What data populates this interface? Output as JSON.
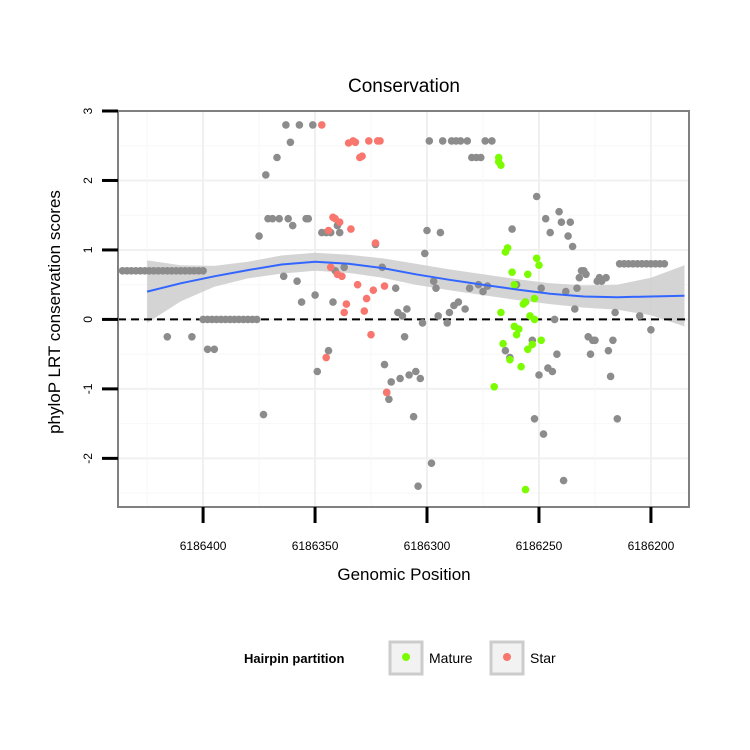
{
  "chart_data": {
    "type": "scatter",
    "title": "Conservation",
    "xlabel": "Genomic Position",
    "ylabel": "phyloP LRT conservation scores",
    "x_reversed": true,
    "xlim": [
      6186438,
      6186183
    ],
    "ylim": [
      -2.7,
      3.0
    ],
    "x_ticks": [
      6186400,
      6186350,
      6186300,
      6186250,
      6186200
    ],
    "x_tick_labels": [
      "6186400",
      "6186350",
      "6186300",
      "6186250",
      "6186200"
    ],
    "y_ticks": [
      -2,
      -1,
      0,
      1,
      2,
      3
    ],
    "y_tick_labels": [
      "-2",
      "-1",
      "0",
      "1",
      "2",
      "3"
    ],
    "reference_line": {
      "y": 0,
      "style": "dashed",
      "color": "#000000"
    },
    "grid": true,
    "legend": {
      "title": "Hairpin partition",
      "position": "bottom",
      "entries": [
        {
          "label": "Mature",
          "color": "#7cfc00"
        },
        {
          "label": "Star",
          "color": "#f8766d"
        }
      ]
    },
    "colors": {
      "other": "#8c8c8c",
      "Mature": "#7cfc00",
      "Star": "#f8766d",
      "smooth": "#3366ff",
      "band": "#cccccc"
    },
    "smooth": {
      "x": [
        6186425,
        6186410,
        6186395,
        6186380,
        6186365,
        6186350,
        6186335,
        6186320,
        6186305,
        6186290,
        6186275,
        6186260,
        6186245,
        6186230,
        6186215,
        6186200,
        6186185
      ],
      "y": [
        0.4,
        0.52,
        0.62,
        0.71,
        0.79,
        0.83,
        0.8,
        0.74,
        0.65,
        0.57,
        0.5,
        0.43,
        0.37,
        0.33,
        0.32,
        0.33,
        0.34
      ],
      "upper": [
        0.85,
        0.78,
        0.77,
        0.83,
        0.92,
        0.96,
        0.93,
        0.88,
        0.8,
        0.72,
        0.65,
        0.58,
        0.52,
        0.49,
        0.5,
        0.6,
        0.78
      ],
      "lower": [
        -0.05,
        0.26,
        0.47,
        0.59,
        0.66,
        0.7,
        0.67,
        0.6,
        0.5,
        0.42,
        0.35,
        0.28,
        0.22,
        0.17,
        0.14,
        0.06,
        -0.1
      ]
    },
    "series": [
      {
        "group": "other",
        "points": [
          [
            6186436,
            0.7
          ],
          [
            6186434,
            0.7
          ],
          [
            6186432,
            0.7
          ],
          [
            6186430,
            0.7
          ],
          [
            6186428,
            0.7
          ],
          [
            6186426,
            0.7
          ],
          [
            6186424,
            0.7
          ],
          [
            6186422,
            0.7
          ],
          [
            6186420,
            0.7
          ],
          [
            6186418,
            0.7
          ],
          [
            6186416,
            0.7
          ],
          [
            6186414,
            0.7
          ],
          [
            6186412,
            0.7
          ],
          [
            6186410,
            0.7
          ],
          [
            6186408,
            0.7
          ],
          [
            6186406,
            0.7
          ],
          [
            6186404,
            0.7
          ],
          [
            6186402,
            0.7
          ],
          [
            6186400,
            0.7
          ],
          [
            6186416,
            -0.25
          ],
          [
            6186405,
            -0.25
          ],
          [
            6186398,
            -0.43
          ],
          [
            6186395,
            -0.43
          ],
          [
            6186400,
            0
          ],
          [
            6186398,
            0
          ],
          [
            6186396,
            0
          ],
          [
            6186394,
            0
          ],
          [
            6186392,
            0
          ],
          [
            6186390,
            0
          ],
          [
            6186388,
            0
          ],
          [
            6186386,
            0
          ],
          [
            6186384,
            0
          ],
          [
            6186382,
            0
          ],
          [
            6186380,
            0
          ],
          [
            6186378,
            0
          ],
          [
            6186376,
            0
          ],
          [
            6186375,
            1.2
          ],
          [
            6186372,
            2.08
          ],
          [
            6186373,
            -1.37
          ],
          [
            6186369,
            1.45
          ],
          [
            6186367,
            2.33
          ],
          [
            6186364,
            0.62
          ],
          [
            6186363,
            2.8
          ],
          [
            6186361,
            2.55
          ],
          [
            6186360,
            1.35
          ],
          [
            6186358,
            0.55
          ],
          [
            6186357,
            2.8
          ],
          [
            6186356,
            0.25
          ],
          [
            6186354,
            1.45
          ],
          [
            6186351,
            2.8
          ],
          [
            6186350,
            0.35
          ],
          [
            6186349,
            -0.75
          ],
          [
            6186347,
            1.25
          ],
          [
            6186345,
            1.25
          ],
          [
            6186344,
            -0.45
          ],
          [
            6186343,
            1.25
          ],
          [
            6186342,
            0.25
          ],
          [
            6186341,
            0.7
          ],
          [
            6186340,
            1.35
          ],
          [
            6186371,
            1.45
          ],
          [
            6186366,
            1.45
          ],
          [
            6186362,
            1.45
          ],
          [
            6186353,
            1.45
          ],
          [
            6186339,
            1.25
          ],
          [
            6186337,
            0.75
          ],
          [
            6186323,
            1.08
          ],
          [
            6186320,
            0.75
          ],
          [
            6186319,
            -0.65
          ],
          [
            6186318,
            -1.05
          ],
          [
            6186317,
            -1.15
          ],
          [
            6186316,
            -0.9
          ],
          [
            6186314,
            0.45
          ],
          [
            6186313,
            0.1
          ],
          [
            6186312,
            -0.85
          ],
          [
            6186311,
            0.05
          ],
          [
            6186310,
            -0.25
          ],
          [
            6186309,
            0.15
          ],
          [
            6186308,
            -0.8
          ],
          [
            6186306,
            -1.4
          ],
          [
            6186305,
            -0.75
          ],
          [
            6186304,
            -2.4
          ],
          [
            6186303,
            -0.85
          ],
          [
            6186302,
            -0.05
          ],
          [
            6186301,
            0.95
          ],
          [
            6186300,
            1.28
          ],
          [
            6186299,
            2.57
          ],
          [
            6186298,
            -2.07
          ],
          [
            6186297,
            0.55
          ],
          [
            6186296,
            0.45
          ],
          [
            6186295,
            0.05
          ],
          [
            6186294,
            1.25
          ],
          [
            6186293,
            2.57
          ],
          [
            6186291,
            -0.05
          ],
          [
            6186290,
            0.1
          ],
          [
            6186289,
            2.57
          ],
          [
            6186288,
            0.2
          ],
          [
            6186287,
            2.57
          ],
          [
            6186286,
            0.25
          ],
          [
            6186285,
            2.57
          ],
          [
            6186283,
            0.15
          ],
          [
            6186282,
            2.57
          ],
          [
            6186281,
            0.45
          ],
          [
            6186280,
            2.33
          ],
          [
            6186278,
            2.33
          ],
          [
            6186277,
            0.5
          ],
          [
            6186276,
            2.33
          ],
          [
            6186275,
            0.4
          ],
          [
            6186274,
            2.57
          ],
          [
            6186273,
            0.48
          ],
          [
            6186271,
            2.57
          ],
          [
            6186265,
            -0.45
          ],
          [
            6186263,
            -0.55
          ],
          [
            6186262,
            1.3
          ],
          [
            6186260,
            0.5
          ],
          [
            6186256,
            0.25
          ],
          [
            6186253,
            -0.3
          ],
          [
            6186252,
            -1.43
          ],
          [
            6186251,
            1.77
          ],
          [
            6186250,
            -0.8
          ],
          [
            6186249,
            0.45
          ],
          [
            6186248,
            -1.65
          ],
          [
            6186247,
            1.45
          ],
          [
            6186246,
            -0.7
          ],
          [
            6186245,
            1.25
          ],
          [
            6186244,
            -0.75
          ],
          [
            6186243,
            0.0
          ],
          [
            6186242,
            -0.5
          ],
          [
            6186241,
            1.55
          ],
          [
            6186240,
            1.4
          ],
          [
            6186239,
            -2.32
          ],
          [
            6186238,
            0.4
          ],
          [
            6186237,
            1.2
          ],
          [
            6186236,
            1.4
          ],
          [
            6186235,
            1.05
          ],
          [
            6186234,
            0.15
          ],
          [
            6186233,
            0.45
          ],
          [
            6186232,
            0.6
          ],
          [
            6186231,
            0.7
          ],
          [
            6186230,
            0.7
          ],
          [
            6186229,
            0.65
          ],
          [
            6186228,
            -0.25
          ],
          [
            6186227,
            -0.5
          ],
          [
            6186226,
            -0.3
          ],
          [
            6186225,
            -0.3
          ],
          [
            6186224,
            0.55
          ],
          [
            6186223,
            0.6
          ],
          [
            6186222,
            0.55
          ],
          [
            6186220,
            0.6
          ],
          [
            6186219,
            -0.45
          ],
          [
            6186218,
            -0.82
          ],
          [
            6186217,
            -0.3
          ],
          [
            6186216,
            0.1
          ],
          [
            6186215,
            -1.43
          ],
          [
            6186214,
            0.8
          ],
          [
            6186212,
            0.8
          ],
          [
            6186210,
            0.8
          ],
          [
            6186208,
            0.8
          ],
          [
            6186206,
            0.8
          ],
          [
            6186204,
            0.8
          ],
          [
            6186202,
            0.8
          ],
          [
            6186200,
            0.8
          ],
          [
            6186198,
            0.8
          ],
          [
            6186196,
            0.8
          ],
          [
            6186194,
            0.8
          ],
          [
            6186205,
            0.05
          ],
          [
            6186200,
            -0.15
          ]
        ]
      },
      {
        "group": "Star",
        "points": [
          [
            6186347,
            2.8
          ],
          [
            6186344,
            1.28
          ],
          [
            6186342,
            1.47
          ],
          [
            6186341,
            1.45
          ],
          [
            6186340,
            0.65
          ],
          [
            6186338,
            0.62
          ],
          [
            6186337,
            0.1
          ],
          [
            6186336,
            0.22
          ],
          [
            6186335,
            2.54
          ],
          [
            6186333,
            2.57
          ],
          [
            6186332,
            2.55
          ],
          [
            6186331,
            0.5
          ],
          [
            6186330,
            2.33
          ],
          [
            6186329,
            2.35
          ],
          [
            6186328,
            0.12
          ],
          [
            6186327,
            0.3
          ],
          [
            6186326,
            2.57
          ],
          [
            6186325,
            -0.22
          ],
          [
            6186324,
            0.42
          ],
          [
            6186323,
            1.1
          ],
          [
            6186322,
            2.57
          ],
          [
            6186321,
            2.57
          ],
          [
            6186319,
            0.48
          ],
          [
            6186318,
            -1.05
          ],
          [
            6186345,
            -0.55
          ],
          [
            6186343,
            0.75
          ],
          [
            6186334,
            1.3
          ],
          [
            6186339,
            1.4
          ]
        ]
      },
      {
        "group": "Mature",
        "points": [
          [
            6186268,
            2.33
          ],
          [
            6186267,
            2.22
          ],
          [
            6186266,
            -0.35
          ],
          [
            6186265,
            0.97
          ],
          [
            6186264,
            1.03
          ],
          [
            6186263,
            -0.58
          ],
          [
            6186262,
            0.68
          ],
          [
            6186261,
            0.5
          ],
          [
            6186260,
            -0.22
          ],
          [
            6186259,
            -0.14
          ],
          [
            6186258,
            -0.68
          ],
          [
            6186257,
            0.22
          ],
          [
            6186256,
            -2.45
          ],
          [
            6186255,
            -0.43
          ],
          [
            6186254,
            0.05
          ],
          [
            6186253,
            -0.36
          ],
          [
            6186252,
            0.3
          ],
          [
            6186251,
            0.88
          ],
          [
            6186250,
            0.78
          ],
          [
            6186249,
            -0.3
          ],
          [
            6186255,
            0.65
          ],
          [
            6186261,
            -0.1
          ],
          [
            6186256,
            0.25
          ],
          [
            6186252,
            0.0
          ],
          [
            6186270,
            -0.97
          ],
          [
            6186267,
            0.1
          ],
          [
            6186268,
            2.27
          ]
        ]
      }
    ]
  }
}
